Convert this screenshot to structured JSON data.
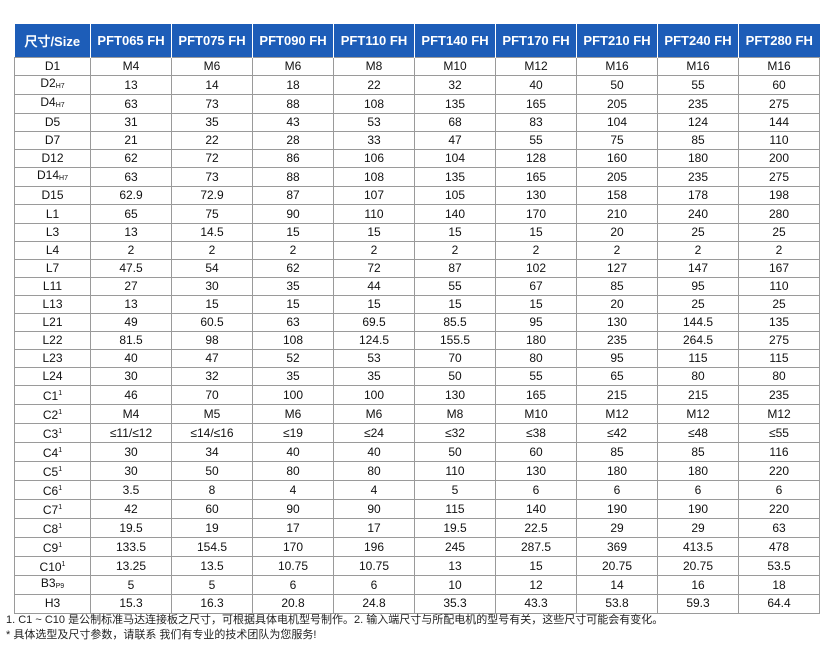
{
  "header": [
    "尺寸/Size",
    "PFT065 FH",
    "PFT075 FH",
    "PFT090 FH",
    "PFT110 FH",
    "PFT140 FH",
    "PFT170 FH",
    "PFT210 FH",
    "PFT240 FH",
    "PFT280 FH"
  ],
  "rows": [
    {
      "label": "D1",
      "sub": "",
      "sup": "",
      "values": [
        "M4",
        "M6",
        "M6",
        "M8",
        "M10",
        "M12",
        "M16",
        "M16",
        "M16"
      ]
    },
    {
      "label": "D2",
      "sub": "H7",
      "sup": "",
      "values": [
        "13",
        "14",
        "18",
        "22",
        "32",
        "40",
        "50",
        "55",
        "60"
      ]
    },
    {
      "label": "D4",
      "sub": "H7",
      "sup": "",
      "values": [
        "63",
        "73",
        "88",
        "108",
        "135",
        "165",
        "205",
        "235",
        "275"
      ]
    },
    {
      "label": "D5",
      "sub": "",
      "sup": "",
      "values": [
        "31",
        "35",
        "43",
        "53",
        "68",
        "83",
        "104",
        "124",
        "144"
      ]
    },
    {
      "label": "D7",
      "sub": "",
      "sup": "",
      "values": [
        "21",
        "22",
        "28",
        "33",
        "47",
        "55",
        "75",
        "85",
        "110"
      ]
    },
    {
      "label": "D12",
      "sub": "",
      "sup": "",
      "values": [
        "62",
        "72",
        "86",
        "106",
        "104",
        "128",
        "160",
        "180",
        "200"
      ]
    },
    {
      "label": "D14",
      "sub": "H7",
      "sup": "",
      "values": [
        "63",
        "73",
        "88",
        "108",
        "135",
        "165",
        "205",
        "235",
        "275"
      ]
    },
    {
      "label": "D15",
      "sub": "",
      "sup": "",
      "values": [
        "62.9",
        "72.9",
        "87",
        "107",
        "105",
        "130",
        "158",
        "178",
        "198"
      ]
    },
    {
      "label": "L1",
      "sub": "",
      "sup": "",
      "values": [
        "65",
        "75",
        "90",
        "110",
        "140",
        "170",
        "210",
        "240",
        "280"
      ]
    },
    {
      "label": "L3",
      "sub": "",
      "sup": "",
      "values": [
        "13",
        "14.5",
        "15",
        "15",
        "15",
        "15",
        "20",
        "25",
        "25"
      ]
    },
    {
      "label": "L4",
      "sub": "",
      "sup": "",
      "values": [
        "2",
        "2",
        "2",
        "2",
        "2",
        "2",
        "2",
        "2",
        "2"
      ]
    },
    {
      "label": "L7",
      "sub": "",
      "sup": "",
      "values": [
        "47.5",
        "54",
        "62",
        "72",
        "87",
        "102",
        "127",
        "147",
        "167"
      ]
    },
    {
      "label": "L11",
      "sub": "",
      "sup": "",
      "values": [
        "27",
        "30",
        "35",
        "44",
        "55",
        "67",
        "85",
        "95",
        "110"
      ]
    },
    {
      "label": "L13",
      "sub": "",
      "sup": "",
      "values": [
        "13",
        "15",
        "15",
        "15",
        "15",
        "15",
        "20",
        "25",
        "25"
      ]
    },
    {
      "label": "L21",
      "sub": "",
      "sup": "",
      "values": [
        "49",
        "60.5",
        "63",
        "69.5",
        "85.5",
        "95",
        "130",
        "144.5",
        "135"
      ]
    },
    {
      "label": "L22",
      "sub": "",
      "sup": "",
      "values": [
        "81.5",
        "98",
        "108",
        "124.5",
        "155.5",
        "180",
        "235",
        "264.5",
        "275"
      ]
    },
    {
      "label": "L23",
      "sub": "",
      "sup": "",
      "values": [
        "40",
        "47",
        "52",
        "53",
        "70",
        "80",
        "95",
        "115",
        "115"
      ]
    },
    {
      "label": "L24",
      "sub": "",
      "sup": "",
      "values": [
        "30",
        "32",
        "35",
        "35",
        "50",
        "55",
        "65",
        "80",
        "80"
      ]
    },
    {
      "label": "C1",
      "sub": "",
      "sup": "1",
      "values": [
        "46",
        "70",
        "100",
        "100",
        "130",
        "165",
        "215",
        "215",
        "235"
      ]
    },
    {
      "label": "C2",
      "sub": "",
      "sup": "1",
      "values": [
        "M4",
        "M5",
        "M6",
        "M6",
        "M8",
        "M10",
        "M12",
        "M12",
        "M12"
      ]
    },
    {
      "label": "C3",
      "sub": "",
      "sup": "1",
      "values": [
        "≤11/≤12",
        "≤14/≤16",
        "≤19",
        "≤24",
        "≤32",
        "≤38",
        "≤42",
        "≤48",
        "≤55"
      ]
    },
    {
      "label": "C4",
      "sub": "",
      "sup": "1",
      "values": [
        "30",
        "34",
        "40",
        "40",
        "50",
        "60",
        "85",
        "85",
        "116"
      ]
    },
    {
      "label": "C5",
      "sub": "",
      "sup": "1",
      "values": [
        "30",
        "50",
        "80",
        "80",
        "110",
        "130",
        "180",
        "180",
        "220"
      ]
    },
    {
      "label": "C6",
      "sub": "",
      "sup": "1",
      "values": [
        "3.5",
        "8",
        "4",
        "4",
        "5",
        "6",
        "6",
        "6",
        "6"
      ]
    },
    {
      "label": "C7",
      "sub": "",
      "sup": "1",
      "values": [
        "42",
        "60",
        "90",
        "90",
        "115",
        "140",
        "190",
        "190",
        "220"
      ]
    },
    {
      "label": "C8",
      "sub": "",
      "sup": "1",
      "values": [
        "19.5",
        "19",
        "17",
        "17",
        "19.5",
        "22.5",
        "29",
        "29",
        "63"
      ]
    },
    {
      "label": "C9",
      "sub": "",
      "sup": "1",
      "values": [
        "133.5",
        "154.5",
        "170",
        "196",
        "245",
        "287.5",
        "369",
        "413.5",
        "478"
      ]
    },
    {
      "label": "C10",
      "sub": "",
      "sup": "1",
      "values": [
        "13.25",
        "13.5",
        "10.75",
        "10.75",
        "13",
        "15",
        "20.75",
        "20.75",
        "53.5"
      ]
    },
    {
      "label": "B3",
      "sub": "P9",
      "sup": "",
      "values": [
        "5",
        "5",
        "6",
        "6",
        "10",
        "12",
        "14",
        "16",
        "18"
      ]
    },
    {
      "label": "H3",
      "sub": "",
      "sup": "",
      "values": [
        "15.3",
        "16.3",
        "20.8",
        "24.8",
        "35.3",
        "43.3",
        "53.8",
        "59.3",
        "64.4"
      ]
    }
  ],
  "notes": {
    "line1": "1. C1 ~ C10 是公制标准马达连接板之尺寸，可根据具体电机型号制作。2. 输入端尺寸与所配电机的型号有关，这些尺寸可能会有变化。",
    "line2": "* 具体选型及尺寸参数，请联系 我们有专业的技术团队为您服务!"
  }
}
